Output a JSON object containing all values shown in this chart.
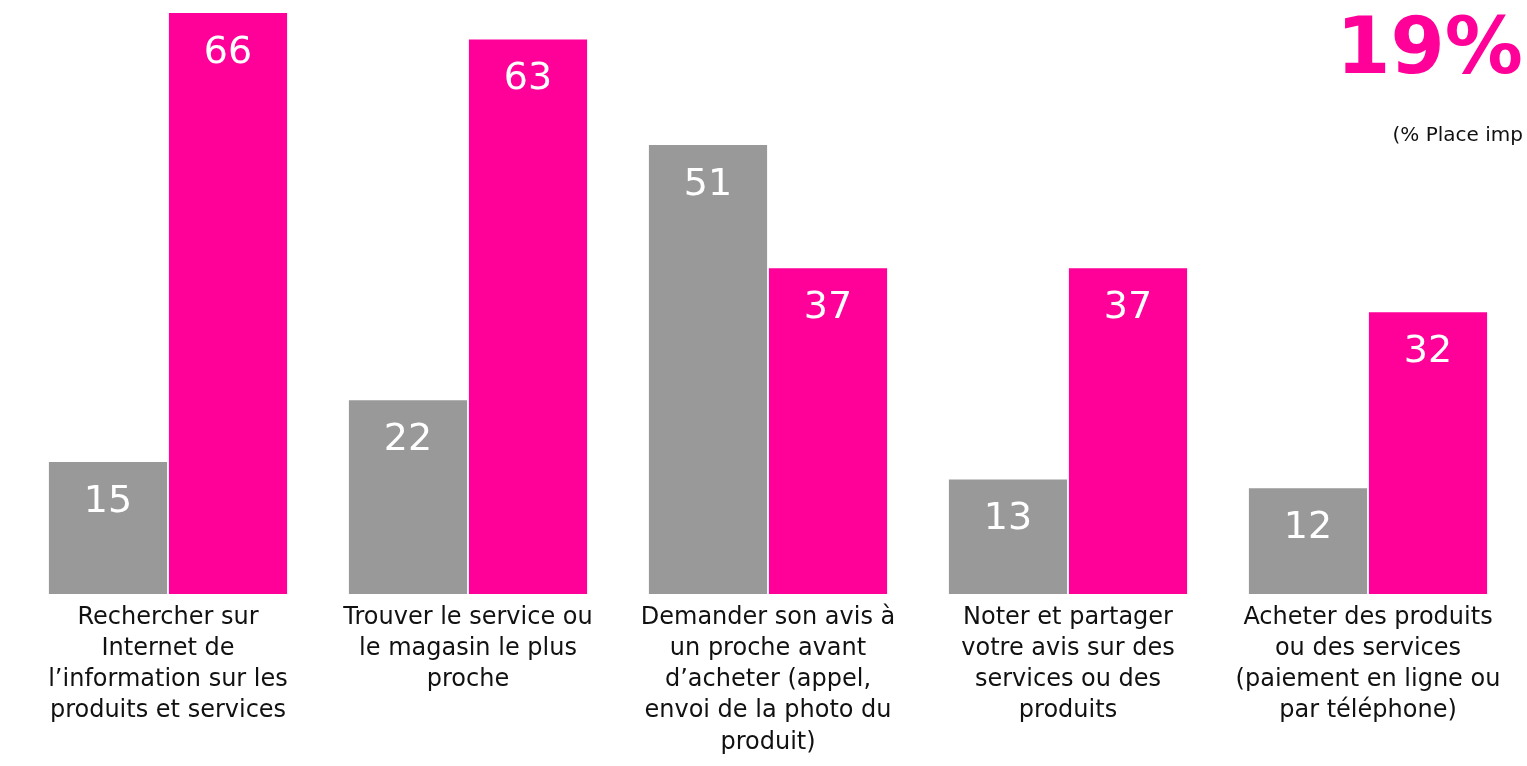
{
  "chart_data": {
    "type": "bar",
    "categories": [
      "Rechercher sur Internet de l’information sur les produits et services",
      "Trouver le service ou le magasin le plus proche",
      "Demander son avis à un proche avant d’acheter (appel, envoi de la photo du produit)",
      "Noter et partager votre avis sur des services ou des produits",
      "Acheter des produits ou des services (paiement en ligne ou par téléphone)"
    ],
    "series": [
      {
        "color": "#999999",
        "values": [
          15,
          22,
          51,
          13,
          12
        ]
      },
      {
        "color": "#ff0099",
        "values": [
          66,
          63,
          37,
          37,
          32
        ]
      }
    ],
    "data_labels": true,
    "grid": false,
    "legend": false,
    "annotations": [
      "19%",
      "(% Place imp"
    ]
  }
}
